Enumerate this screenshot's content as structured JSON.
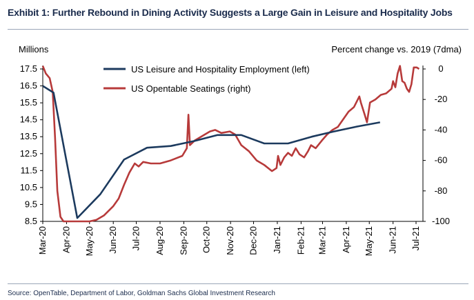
{
  "header": {
    "title": "Exhibit 1: Further Rebound in Dining Activity Suggests a Large Gain in Leisure and Hospitality Jobs"
  },
  "footer": {
    "source": "Source: OpenTable, Department of Labor, Goldman Sachs Global Investment Research"
  },
  "colors": {
    "employment": "#1c3a5e",
    "opentable": "#b73a3a",
    "axis": "#000000",
    "title": "#1a2b4c"
  },
  "chart_data": {
    "type": "line",
    "left_axis": {
      "label": "Millions",
      "min": 8.5,
      "max": 17.5,
      "ticks": [
        "17.5",
        "16.5",
        "15.5",
        "14.5",
        "13.5",
        "12.5",
        "11.5",
        "10.5",
        "9.5",
        "8.5"
      ]
    },
    "right_axis": {
      "label": "Percent change vs. 2019 (7dma)",
      "min": -100,
      "max": 0,
      "ticks": [
        "0",
        "-20",
        "-40",
        "-60",
        "-80",
        "-100"
      ]
    },
    "x_axis": {
      "min": "2020-03-01",
      "max": "2021-07-10",
      "tick_labels": [
        "Mar-20",
        "Apr-20",
        "May-20",
        "Jun-20",
        "Jul-20",
        "Aug-20",
        "Sep-20",
        "Oct-20",
        "Nov-20",
        "Dec-20",
        "Jan-21",
        "Feb-21",
        "Mar-21",
        "Apr-21",
        "May-21",
        "Jun-21",
        "Jul-21"
      ]
    },
    "legend": {
      "placement": "top-left",
      "grid": false
    },
    "series": [
      {
        "name": "US Leisure and Hospitality Employment (left)",
        "axis": "left",
        "points": [
          [
            "2020-03-01",
            16.5
          ],
          [
            "2020-03-15",
            16.1
          ],
          [
            "2020-04-15",
            8.7
          ],
          [
            "2020-05-15",
            10.1
          ],
          [
            "2020-06-15",
            12.15
          ],
          [
            "2020-07-15",
            12.85
          ],
          [
            "2020-08-15",
            12.95
          ],
          [
            "2020-09-15",
            13.25
          ],
          [
            "2020-10-15",
            13.6
          ],
          [
            "2020-11-15",
            13.6
          ],
          [
            "2020-12-15",
            13.1
          ],
          [
            "2021-01-15",
            13.1
          ],
          [
            "2021-02-15",
            13.5
          ],
          [
            "2021-03-15",
            13.8
          ],
          [
            "2021-04-15",
            14.1
          ],
          [
            "2021-05-15",
            14.35
          ]
        ]
      },
      {
        "name": "US Opentable Seatings (right)",
        "axis": "right",
        "points": [
          [
            "2020-03-01",
            2
          ],
          [
            "2020-03-05",
            -3
          ],
          [
            "2020-03-10",
            -6
          ],
          [
            "2020-03-14",
            -15
          ],
          [
            "2020-03-17",
            -45
          ],
          [
            "2020-03-20",
            -80
          ],
          [
            "2020-03-24",
            -97
          ],
          [
            "2020-03-28",
            -100
          ],
          [
            "2020-04-15",
            -100
          ],
          [
            "2020-05-01",
            -100
          ],
          [
            "2020-05-10",
            -99
          ],
          [
            "2020-05-20",
            -96
          ],
          [
            "2020-06-01",
            -90
          ],
          [
            "2020-06-08",
            -85
          ],
          [
            "2020-06-15",
            -76
          ],
          [
            "2020-06-22",
            -68
          ],
          [
            "2020-06-29",
            -62
          ],
          [
            "2020-07-04",
            -64
          ],
          [
            "2020-07-10",
            -61
          ],
          [
            "2020-07-20",
            -62
          ],
          [
            "2020-08-01",
            -62
          ],
          [
            "2020-08-15",
            -60
          ],
          [
            "2020-08-30",
            -57
          ],
          [
            "2020-09-05",
            -52
          ],
          [
            "2020-09-07",
            -30
          ],
          [
            "2020-09-09",
            -50
          ],
          [
            "2020-09-15",
            -47
          ],
          [
            "2020-09-25",
            -44
          ],
          [
            "2020-10-05",
            -41
          ],
          [
            "2020-10-12",
            -40
          ],
          [
            "2020-10-20",
            -42
          ],
          [
            "2020-10-31",
            -41
          ],
          [
            "2020-11-07",
            -43
          ],
          [
            "2020-11-15",
            -50
          ],
          [
            "2020-11-25",
            -54
          ],
          [
            "2020-12-05",
            -60
          ],
          [
            "2020-12-15",
            -63
          ],
          [
            "2020-12-25",
            -67
          ],
          [
            "2020-12-31",
            -65
          ],
          [
            "2021-01-02",
            -57
          ],
          [
            "2021-01-05",
            -63
          ],
          [
            "2021-01-10",
            -58
          ],
          [
            "2021-01-15",
            -55
          ],
          [
            "2021-01-20",
            -57
          ],
          [
            "2021-01-25",
            -52
          ],
          [
            "2021-01-30",
            -56
          ],
          [
            "2021-02-05",
            -58
          ],
          [
            "2021-02-10",
            -54
          ],
          [
            "2021-02-14",
            -50
          ],
          [
            "2021-02-20",
            -52
          ],
          [
            "2021-02-28",
            -47
          ],
          [
            "2021-03-07",
            -43
          ],
          [
            "2021-03-14",
            -40
          ],
          [
            "2021-03-21",
            -38
          ],
          [
            "2021-03-28",
            -33
          ],
          [
            "2021-04-04",
            -28
          ],
          [
            "2021-04-11",
            -25
          ],
          [
            "2021-04-18",
            -18
          ],
          [
            "2021-04-20",
            -22
          ],
          [
            "2021-04-25",
            -30
          ],
          [
            "2021-04-28",
            -35
          ],
          [
            "2021-05-02",
            -22
          ],
          [
            "2021-05-09",
            -20
          ],
          [
            "2021-05-16",
            -17
          ],
          [
            "2021-05-23",
            -16
          ],
          [
            "2021-05-30",
            -13
          ],
          [
            "2021-06-01",
            -8
          ],
          [
            "2021-06-04",
            -12
          ],
          [
            "2021-06-07",
            -3
          ],
          [
            "2021-06-10",
            2
          ],
          [
            "2021-06-13",
            -8
          ],
          [
            "2021-06-16",
            -9
          ],
          [
            "2021-06-19",
            -13
          ],
          [
            "2021-06-22",
            -15
          ],
          [
            "2021-06-25",
            -10
          ],
          [
            "2021-06-28",
            1
          ],
          [
            "2021-07-02",
            1
          ],
          [
            "2021-07-05",
            0
          ]
        ]
      }
    ]
  }
}
